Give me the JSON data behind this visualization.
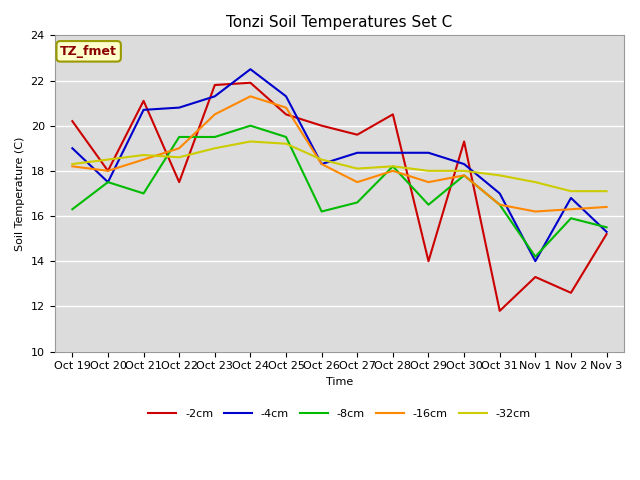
{
  "title": "Tonzi Soil Temperatures Set C",
  "xlabel": "Time",
  "ylabel": "Soil Temperature (C)",
  "annotation": "TZ_fmet",
  "xlabels": [
    "Oct 19",
    "Oct 20",
    "Oct 21",
    "Oct 22",
    "Oct 23",
    "Oct 24",
    "Oct 25",
    "Oct 26",
    "Oct 27",
    "Oct 28",
    "Oct 29",
    "Oct 30",
    "Oct 31",
    "Nov 1",
    "Nov 2",
    "Nov 3"
  ],
  "ylim": [
    10,
    24
  ],
  "series": {
    "-2cm": {
      "color": "#cc0000",
      "data": [
        20.2,
        18.0,
        21.1,
        17.5,
        21.8,
        21.9,
        20.5,
        20.0,
        19.6,
        20.5,
        14.0,
        19.3,
        11.8,
        13.3,
        12.6,
        15.2
      ]
    },
    "-4cm": {
      "color": "#0000cc",
      "data": [
        19.0,
        17.5,
        20.7,
        20.8,
        21.3,
        22.5,
        21.3,
        18.3,
        18.8,
        18.8,
        18.8,
        18.3,
        17.0,
        14.0,
        16.8,
        15.3
      ]
    },
    "-8cm": {
      "color": "#00bb00",
      "data": [
        16.3,
        17.5,
        17.0,
        19.5,
        19.5,
        20.0,
        19.5,
        16.2,
        16.6,
        18.2,
        16.5,
        17.8,
        16.5,
        14.2,
        15.9,
        15.5
      ]
    },
    "-16cm": {
      "color": "#ff8800",
      "data": [
        18.2,
        18.0,
        18.5,
        19.0,
        20.5,
        21.3,
        20.8,
        18.3,
        17.5,
        18.0,
        17.5,
        17.8,
        16.5,
        16.2,
        16.3,
        16.4
      ]
    },
    "-32cm": {
      "color": "#cccc00",
      "data": [
        18.3,
        18.5,
        18.7,
        18.6,
        19.0,
        19.3,
        19.2,
        18.5,
        18.1,
        18.2,
        18.0,
        18.0,
        17.8,
        17.5,
        17.1,
        17.1
      ]
    }
  },
  "fig_bg": "#ffffff",
  "plot_bg": "#dcdcdc",
  "title_fontsize": 11,
  "axis_fontsize": 8,
  "tick_fontsize": 8,
  "legend_fontsize": 8,
  "linewidth": 1.5
}
